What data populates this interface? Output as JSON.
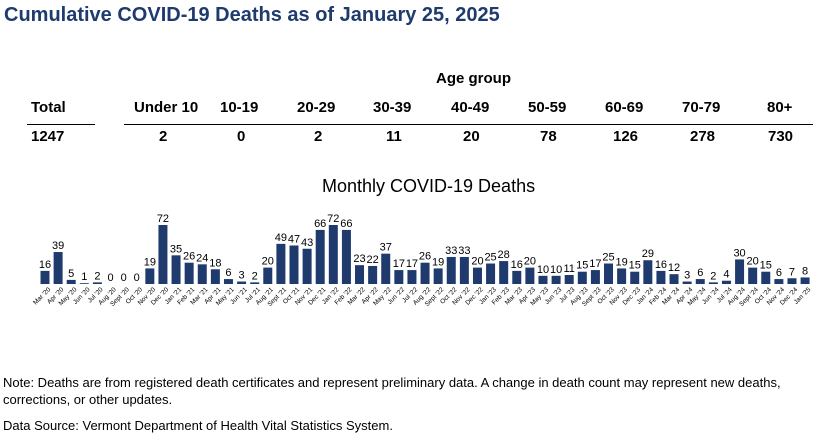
{
  "title": "Cumulative COVID-19 Deaths as of January 25, 2025",
  "age_group_label": "Age group",
  "total": {
    "label": "Total",
    "value": "1247"
  },
  "age_groups": [
    {
      "label": "Under 10",
      "value": "2"
    },
    {
      "label": "10-19",
      "value": "0"
    },
    {
      "label": "20-29",
      "value": "2"
    },
    {
      "label": "30-39",
      "value": "11"
    },
    {
      "label": "40-49",
      "value": "20"
    },
    {
      "label": "50-59",
      "value": "78"
    },
    {
      "label": "60-69",
      "value": "126"
    },
    {
      "label": "70-79",
      "value": "278"
    },
    {
      "label": "80+",
      "value": "730"
    }
  ],
  "chart_data": {
    "type": "bar",
    "title": "Monthly COVID-19 Deaths",
    "categories": [
      "Mar '20",
      "Apr '20",
      "May '20",
      "Jun '20",
      "Jul '20",
      "Aug '20",
      "Sept '20",
      "Oct '20",
      "Nov '20",
      "Dec '20",
      "Jan '21",
      "Feb '21",
      "Mar '21",
      "Apr '21",
      "May '21",
      "Jun '21",
      "Jul '21",
      "Aug '21",
      "Sept '21",
      "Oct '21",
      "Nov '21",
      "Dec '21",
      "Jan '22",
      "Feb '22",
      "Mar '22",
      "Apr '22",
      "May '22",
      "Jun '22",
      "Jul '22",
      "Aug '22",
      "Sept '22",
      "Oct '22",
      "Nov '22",
      "Dec '22",
      "Jan '23",
      "Feb '23",
      "Mar '23",
      "Apr '23",
      "May '23",
      "Jun '23",
      "Jul '23",
      "Aug '23",
      "Sept '23",
      "Oct '23",
      "Nov '23",
      "Dec '23",
      "Jan '24",
      "Feb '24",
      "Mar '24",
      "Apr '24",
      "May '24",
      "Jun '24",
      "Jul '24",
      "Aug '24",
      "Sept '24",
      "Oct '24",
      "Nov '24",
      "Dec '24",
      "Jan '25"
    ],
    "values": [
      16,
      39,
      5,
      1,
      2,
      0,
      0,
      0,
      19,
      72,
      35,
      26,
      24,
      18,
      6,
      3,
      2,
      20,
      49,
      47,
      43,
      66,
      72,
      66,
      23,
      22,
      37,
      17,
      17,
      26,
      19,
      33,
      33,
      20,
      25,
      28,
      16,
      20,
      10,
      10,
      11,
      15,
      17,
      25,
      19,
      15,
      29,
      16,
      12,
      3,
      6,
      2,
      4,
      30,
      20,
      15,
      6,
      7,
      8
    ],
    "bar_color": "#1f3b6e",
    "xlabel": "",
    "ylabel": ""
  },
  "note": "Note: Deaths are from registered death certificates and represent preliminary data. A change in death count may represent new deaths, corrections, or other updates.",
  "source": "Data Source: Vermont Department of Health Vital Statistics System."
}
